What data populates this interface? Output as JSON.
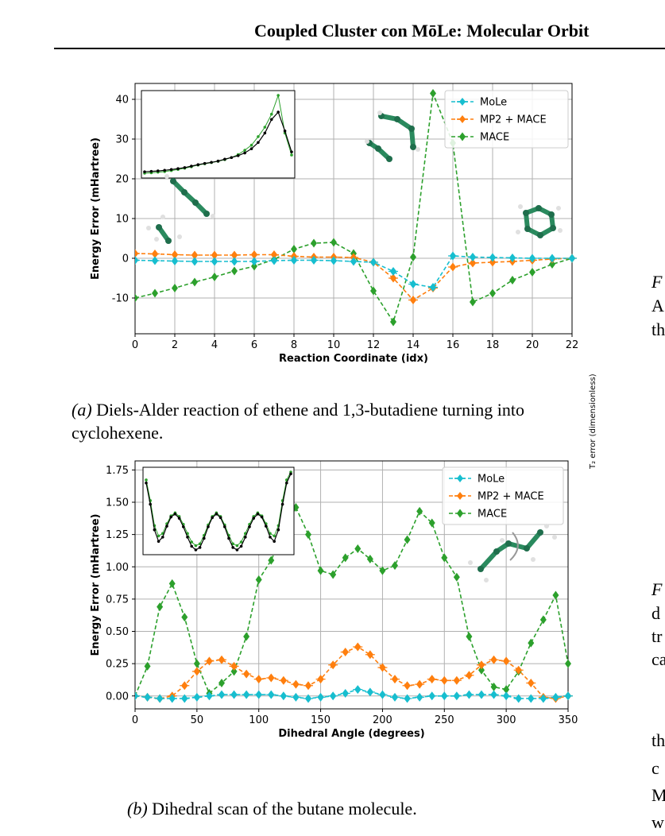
{
  "header": {
    "title": "Coupled Cluster con MōLe: Molecular Orbit"
  },
  "figure_a": {
    "caption_label": "(a)",
    "caption_text": "Diels-Alder reaction of ethene and 1,3-butadiene turning into cyclohexene."
  },
  "figure_b": {
    "caption_label": "(b)",
    "caption_text": "Dihedral scan of the butane molecule."
  },
  "right_column": {
    "fragments": [
      "F",
      "A",
      "th",
      "F",
      "d",
      "tr",
      "ca",
      "th",
      "c",
      "M",
      "w"
    ],
    "cut_axis_label": "T₂ error (dimensionless)"
  },
  "colors": {
    "mole": "#17becf",
    "mp2": "#ff7f0e",
    "mace": "#2ca02c",
    "grid": "#b0b0b0",
    "molecule": "#2a8a5e"
  },
  "chart_data": [
    {
      "type": "line",
      "xlabel": "Reaction Coordinate (idx)",
      "ylabel": "Energy Error (mHartree)",
      "xlim": [
        0,
        22
      ],
      "ylim": [
        -19,
        44
      ],
      "xticks": [
        0,
        2,
        4,
        6,
        8,
        10,
        12,
        14,
        16,
        18,
        20,
        22
      ],
      "yticks": [
        -10,
        0,
        10,
        20,
        30,
        40
      ],
      "grid": true,
      "legend": "top-right",
      "x": [
        0,
        1,
        2,
        3,
        4,
        5,
        6,
        7,
        8,
        9,
        10,
        11,
        12,
        13,
        14,
        15,
        16,
        17,
        18,
        19,
        20,
        21,
        22
      ],
      "series": [
        {
          "name": "MoLe",
          "marker": "plus-diamond",
          "values": [
            -0.5,
            -0.6,
            -0.7,
            -0.8,
            -0.8,
            -0.8,
            -0.8,
            -0.6,
            -0.5,
            -0.5,
            -0.6,
            -0.8,
            -1.0,
            -3.3,
            -6.5,
            -7.3,
            0.6,
            0.3,
            0.2,
            0.1,
            0.0,
            0.0,
            0.0
          ]
        },
        {
          "name": "MP2 + MACE",
          "marker": "plus-diamond",
          "values": [
            1.2,
            1.1,
            0.9,
            0.8,
            0.8,
            0.8,
            0.9,
            0.9,
            0.5,
            0.3,
            0.3,
            0.2,
            -1.0,
            -5.0,
            -10.5,
            -7.5,
            -2.2,
            -1.2,
            -1.0,
            -0.8,
            -0.5,
            -0.2,
            0.0
          ]
        },
        {
          "name": "MACE",
          "marker": "diamond",
          "values": [
            -10.0,
            -8.8,
            -7.5,
            -6.0,
            -4.7,
            -3.2,
            -2.0,
            -0.3,
            2.3,
            3.8,
            4.0,
            1.2,
            -8.2,
            -16.0,
            0.3,
            41.5,
            29.0,
            -11.0,
            -8.8,
            -5.5,
            -3.5,
            -1.5,
            0.0
          ]
        }
      ],
      "inset": {
        "x": [
          0,
          1,
          2,
          3,
          4,
          5,
          6,
          7,
          8,
          9,
          10,
          11,
          12,
          13,
          14,
          15,
          16,
          17,
          18,
          19,
          20,
          21,
          22
        ],
        "series": [
          {
            "name": "reference",
            "color": "black",
            "values": [
              30.5,
              30.7,
              30.9,
              31.2,
              31.6,
              32.0,
              32.5,
              33.2,
              33.9,
              34.5,
              35.0,
              35.6,
              36.5,
              37.3,
              38.2,
              39.5,
              41.5,
              44.5,
              49.0,
              55.5,
              59.0,
              50.0,
              40.0
            ]
          },
          {
            "name": "MACE",
            "color": "green",
            "values": [
              29.8,
              30.0,
              30.3,
              30.6,
              31.1,
              31.6,
              32.2,
              32.9,
              33.7,
              34.3,
              34.9,
              35.5,
              36.3,
              37.3,
              38.7,
              40.8,
              43.2,
              47.3,
              51.8,
              58.0,
              67.0,
              49.0,
              38.5
            ]
          }
        ]
      }
    },
    {
      "type": "line",
      "xlabel": "Dihedral Angle (degrees)",
      "ylabel": "Energy Error (mHartree)",
      "xlim": [
        0,
        350
      ],
      "ylim": [
        -0.1,
        1.82
      ],
      "xticks": [
        0,
        50,
        100,
        150,
        200,
        250,
        300,
        350
      ],
      "yticks": [
        0.0,
        0.25,
        0.5,
        0.75,
        1.0,
        1.25,
        1.5,
        1.75
      ],
      "ytick_labels": [
        "0.00",
        "0.25",
        "0.50",
        "0.75",
        "1.00",
        "1.25",
        "1.50",
        "1.75"
      ],
      "grid": true,
      "legend": "top-right",
      "x": [
        0,
        10,
        20,
        30,
        40,
        50,
        60,
        70,
        80,
        90,
        100,
        110,
        120,
        130,
        140,
        150,
        160,
        170,
        180,
        190,
        200,
        210,
        220,
        230,
        240,
        250,
        260,
        270,
        280,
        290,
        300,
        310,
        320,
        330,
        340,
        350
      ],
      "series": [
        {
          "name": "MoLe",
          "marker": "plus-diamond",
          "values": [
            0.0,
            -0.01,
            -0.02,
            -0.02,
            -0.02,
            -0.01,
            0.0,
            0.01,
            0.01,
            0.01,
            0.01,
            0.01,
            0.0,
            -0.01,
            -0.02,
            -0.01,
            0.0,
            0.02,
            0.05,
            0.03,
            0.01,
            -0.01,
            -0.02,
            -0.01,
            0.0,
            0.0,
            0.0,
            0.01,
            0.01,
            0.01,
            0.0,
            -0.02,
            -0.02,
            -0.02,
            -0.01,
            0.0
          ]
        },
        {
          "name": "MP2 + MACE",
          "marker": "plus-diamond",
          "values": [
            0.0,
            -0.01,
            -0.02,
            0.0,
            0.08,
            0.19,
            0.27,
            0.28,
            0.23,
            0.17,
            0.13,
            0.14,
            0.12,
            0.09,
            0.08,
            0.13,
            0.24,
            0.34,
            0.38,
            0.32,
            0.22,
            0.13,
            0.08,
            0.09,
            0.13,
            0.12,
            0.12,
            0.16,
            0.24,
            0.28,
            0.27,
            0.2,
            0.1,
            -0.01,
            -0.02,
            0.0
          ]
        },
        {
          "name": "MACE",
          "marker": "diamond",
          "values": [
            0.0,
            0.23,
            0.69,
            0.87,
            0.61,
            0.25,
            0.02,
            0.1,
            0.19,
            0.46,
            0.9,
            1.05,
            1.27,
            1.46,
            1.25,
            0.97,
            0.94,
            1.07,
            1.14,
            1.06,
            0.97,
            1.01,
            1.21,
            1.43,
            1.34,
            1.07,
            0.92,
            0.46,
            0.2,
            0.07,
            0.05,
            0.19,
            0.41,
            0.59,
            0.78,
            0.25
          ]
        }
      ],
      "inset": {
        "x": [
          0,
          10,
          20,
          30,
          40,
          50,
          60,
          70,
          80,
          90,
          100,
          110,
          120,
          130,
          140,
          150,
          160,
          170,
          180,
          190,
          200,
          210,
          220,
          230,
          240,
          250,
          260,
          270,
          280,
          290,
          300,
          310,
          320,
          330,
          340,
          350
        ],
        "series": [
          {
            "name": "reference",
            "color": "black",
            "values": [
              12.5,
              9.0,
              4.8,
              2.9,
              3.6,
              5.4,
              6.9,
              7.4,
              6.7,
              5.3,
              3.6,
              2.1,
              1.5,
              1.9,
              3.4,
              5.3,
              6.8,
              7.4,
              6.8,
              5.3,
              3.4,
              1.9,
              1.5,
              2.1,
              3.6,
              5.3,
              6.7,
              7.4,
              6.9,
              5.4,
              3.6,
              2.9,
              4.8,
              9.0,
              12.5,
              14.0
            ]
          },
          {
            "name": "MACE",
            "color": "green",
            "values": [
              13.0,
              9.6,
              5.5,
              3.8,
              4.2,
              5.8,
              7.1,
              7.6,
              7.0,
              5.7,
              4.2,
              2.8,
              2.2,
              2.5,
              3.9,
              5.6,
              7.0,
              7.6,
              7.0,
              5.6,
              3.9,
              2.5,
              2.2,
              2.8,
              4.2,
              5.7,
              7.0,
              7.6,
              7.1,
              5.8,
              4.2,
              3.8,
              5.5,
              9.6,
              13.0,
              14.3
            ]
          }
        ]
      }
    }
  ]
}
